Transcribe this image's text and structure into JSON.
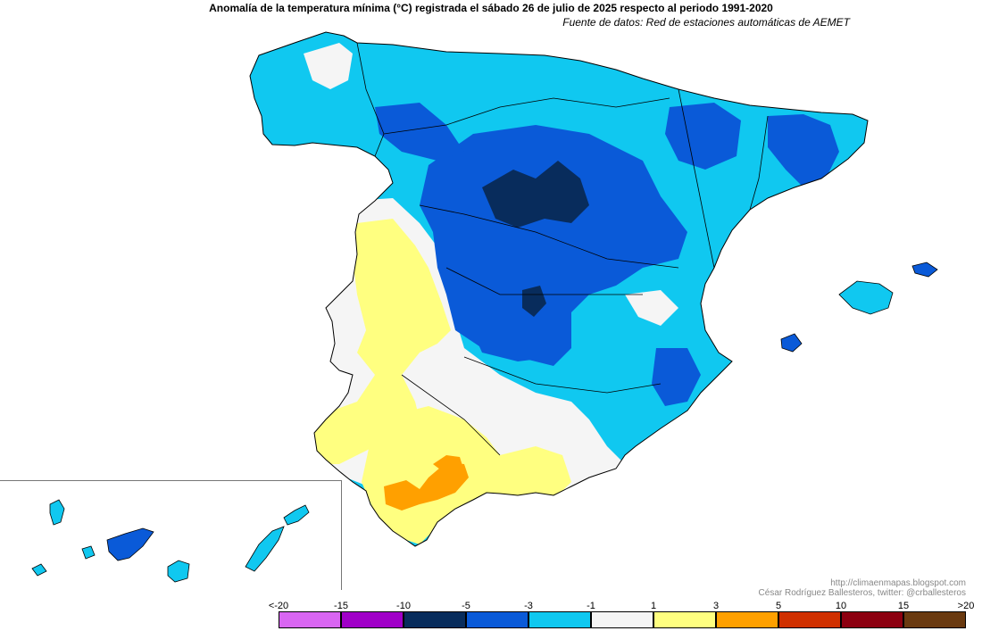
{
  "title": "Anomalía de la temperatura mínima (°C) registrada el sábado 26 de julio de 2025 respecto al periodo 1991-2020",
  "subtitle": "Fuente de datos: Red de estaciones automáticas de AEMET",
  "credits": {
    "url": "http://climaenmapas.blogspot.com",
    "author": "César Rodríguez Ballesteros, twitter: @crballesteros"
  },
  "legend": {
    "ticks": [
      "<-20",
      "-15",
      "-10",
      "-5",
      "-3",
      "-1",
      "1",
      "3",
      "5",
      "10",
      "15",
      ">20"
    ],
    "colors": [
      "#d966f2",
      "#a000c8",
      "#082c5c",
      "#0a5ad8",
      "#10c8f0",
      "#f5f5f5",
      "#ffff80",
      "#ffa000",
      "#d03000",
      "#8c0010",
      "#6a3a10"
    ]
  },
  "palette": {
    "sea": "#ffffff",
    "light_blue": "#10c8f0",
    "blue": "#0a5ad8",
    "dark_blue": "#082c5c",
    "neutral": "#f5f5f5",
    "yellow": "#ffff80",
    "orange": "#ffa000",
    "border": "#000000"
  }
}
